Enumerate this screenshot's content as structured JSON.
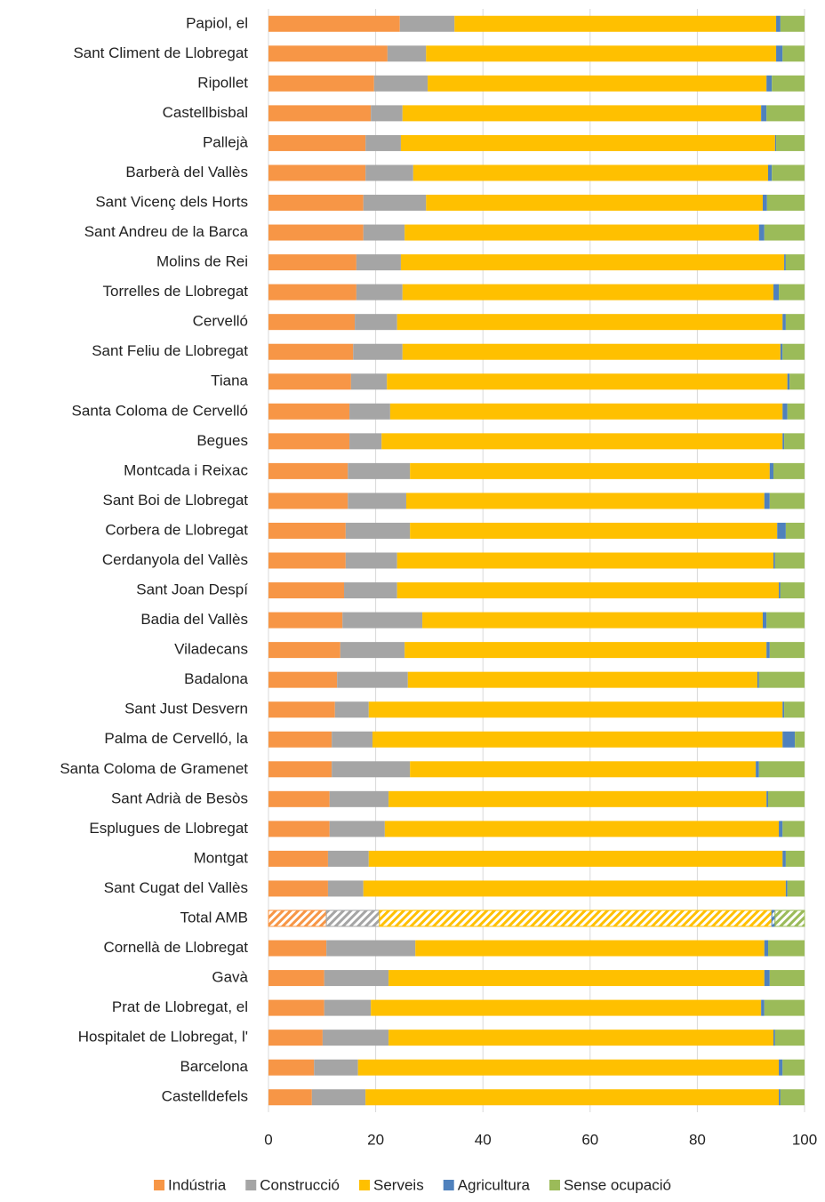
{
  "chart_data": {
    "type": "stacked-bar-horizontal",
    "categories": [
      "Papiol, el",
      "Sant Climent de Llobregat",
      "Ripollet",
      "Castellbisbal",
      "Pallejà",
      "Barberà del Vallès",
      "Sant Vicenç dels Horts",
      "Sant Andreu de la Barca",
      "Molins de Rei",
      "Torrelles de Llobregat",
      "Cervelló",
      "Sant Feliu de Llobregat",
      "Tiana",
      "Santa Coloma de Cervelló",
      "Begues",
      "Montcada i Reixac",
      "Sant Boi de Llobregat",
      "Corbera de Llobregat",
      "Cerdanyola del Vallès",
      "Sant Joan Despí",
      "Badia del Vallès",
      "Viladecans",
      "Badalona",
      "Sant Just Desvern",
      "Palma de Cervelló, la",
      "Santa Coloma de Gramenet",
      "Sant Adrià de Besòs",
      "Esplugues de Llobregat",
      "Montgat",
      "Sant Cugat del Vallès",
      "Total AMB",
      "Cornellà de Llobregat",
      "Gavà",
      "Prat de Llobregat, el",
      "Hospitalet de Llobregat, l'",
      "Barcelona",
      "Castelldefels"
    ],
    "series": [
      {
        "name": "Indústria",
        "color": "#f79646",
        "values": [
          24.5,
          22.2,
          19.7,
          19.1,
          18.1,
          18.1,
          17.7,
          17.7,
          16.4,
          16.4,
          16.1,
          15.8,
          15.4,
          15.1,
          15.1,
          14.8,
          14.8,
          14.4,
          14.4,
          14.1,
          13.8,
          13.4,
          12.8,
          12.4,
          11.8,
          11.8,
          11.4,
          11.4,
          11.1,
          11.1,
          10.8,
          10.8,
          10.4,
          10.4,
          10.1,
          8.5,
          8.1
        ]
      },
      {
        "name": "Construcció",
        "color": "#a5a5a5",
        "values": [
          10.2,
          7.2,
          10.0,
          5.9,
          6.6,
          8.9,
          11.7,
          7.7,
          8.3,
          8.6,
          7.9,
          9.2,
          6.7,
          7.6,
          6.0,
          11.6,
          10.9,
          12.0,
          9.6,
          9.9,
          14.9,
          12.0,
          13.2,
          6.3,
          7.6,
          14.6,
          11.0,
          10.3,
          7.6,
          6.6,
          9.9,
          16.6,
          12.0,
          8.7,
          12.3,
          8.2,
          10.0
        ]
      },
      {
        "name": "Serveis",
        "color": "#ffc000",
        "values": [
          60.0,
          65.3,
          63.2,
          66.9,
          69.8,
          66.2,
          62.8,
          66.1,
          71.5,
          69.2,
          71.9,
          70.5,
          74.7,
          73.2,
          74.8,
          67.1,
          66.8,
          68.5,
          70.2,
          71.2,
          63.5,
          67.5,
          65.2,
          77.2,
          76.5,
          64.5,
          70.5,
          73.5,
          77.2,
          78.8,
          73.2,
          65.1,
          70.1,
          72.8,
          71.8,
          78.5,
          77.1
        ]
      },
      {
        "name": "Agricultura",
        "color": "#4f81bd",
        "values": [
          0.8,
          1.2,
          1.0,
          1.0,
          0.2,
          0.7,
          0.8,
          1.0,
          0.3,
          1.0,
          0.6,
          0.4,
          0.4,
          0.9,
          0.3,
          0.7,
          1.0,
          1.6,
          0.3,
          0.3,
          0.7,
          0.6,
          0.3,
          0.3,
          2.3,
          0.6,
          0.3,
          0.7,
          0.6,
          0.3,
          0.6,
          0.7,
          1.0,
          0.6,
          0.3,
          0.7,
          0.3
        ]
      },
      {
        "name": "Sense ocupació",
        "color": "#9bbb59",
        "values": [
          4.5,
          4.1,
          6.1,
          7.1,
          5.3,
          6.1,
          7.0,
          7.5,
          3.5,
          4.8,
          3.5,
          4.1,
          2.8,
          3.2,
          3.8,
          5.8,
          6.5,
          3.5,
          5.5,
          4.5,
          7.1,
          6.5,
          8.5,
          3.8,
          1.8,
          8.5,
          6.8,
          4.1,
          3.5,
          3.2,
          5.5,
          6.8,
          6.5,
          7.5,
          5.5,
          4.1,
          4.5
        ]
      }
    ],
    "highlight": "Total AMB",
    "xlim": [
      0,
      100
    ],
    "xticks": [
      0,
      20,
      40,
      60,
      80,
      100
    ],
    "grid": true,
    "legend": "bottom"
  }
}
